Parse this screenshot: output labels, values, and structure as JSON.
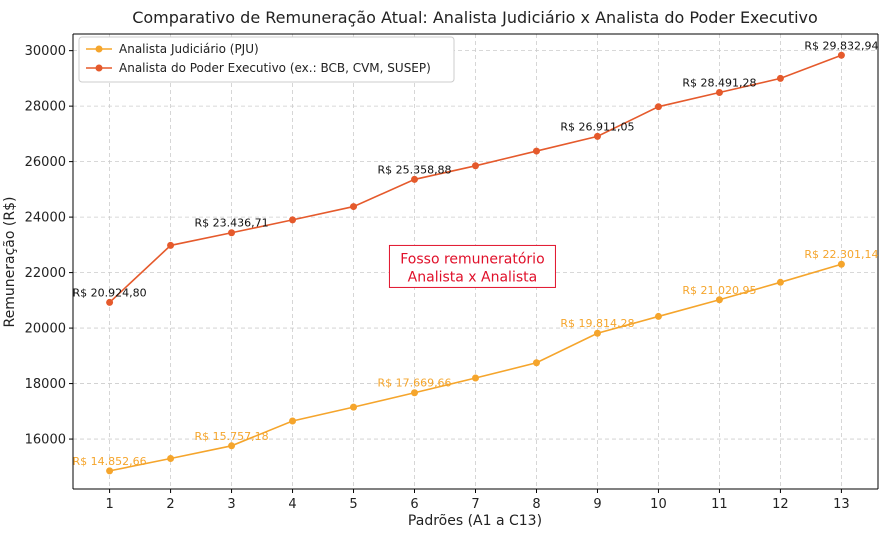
{
  "chart_data": {
    "type": "line",
    "title": "Comparativo de Remuneração Atual: Analista Judiciário x Analista do Poder Executivo",
    "xlabel": "Padrões (A1 a C13)",
    "ylabel": "Remuneração (R$)",
    "x": [
      1,
      2,
      3,
      4,
      5,
      6,
      7,
      8,
      9,
      10,
      11,
      12,
      13
    ],
    "x_ticks": [
      "1",
      "2",
      "3",
      "4",
      "5",
      "6",
      "7",
      "8",
      "9",
      "10",
      "11",
      "12",
      "13"
    ],
    "xlim": [
      0.4,
      13.6
    ],
    "ylim": [
      14200,
      30600
    ],
    "y_ticks": [
      16000,
      18000,
      20000,
      22000,
      24000,
      26000,
      28000,
      30000
    ],
    "y_tick_labels": [
      "16000",
      "18000",
      "20000",
      "22000",
      "24000",
      "26000",
      "28000",
      "30000"
    ],
    "grid": true,
    "legend_position": "top-left",
    "series": [
      {
        "name": "Analista Judiciário (PJU)",
        "color": "#f5a52c",
        "values": [
          14852.66,
          15300,
          15757.18,
          16650,
          17150,
          17669.66,
          18200,
          18750,
          19814.28,
          20420,
          21020.95,
          21650,
          22301.14
        ],
        "labels": [
          {
            "x": 1,
            "text": "R$ 14.852,66"
          },
          {
            "x": 3,
            "text": "R$ 15.757,18"
          },
          {
            "x": 6,
            "text": "R$ 17.669,66"
          },
          {
            "x": 9,
            "text": "R$ 19.814,28"
          },
          {
            "x": 11,
            "text": "R$ 21.020,95"
          },
          {
            "x": 13,
            "text": "R$ 22.301,14"
          }
        ]
      },
      {
        "name": "Analista do Poder Executivo (ex.: BCB, CVM, SUSEP)",
        "color": "#e55a2c",
        "values": [
          20924.8,
          22980,
          23436.71,
          23900,
          24380,
          25358.88,
          25850,
          26380,
          26911.05,
          27980,
          28491.28,
          29000,
          29832.94
        ],
        "labels": [
          {
            "x": 1,
            "text": "R$ 20.924,80"
          },
          {
            "x": 3,
            "text": "R$ 23.436,71"
          },
          {
            "x": 6,
            "text": "R$ 25.358,88"
          },
          {
            "x": 9,
            "text": "R$ 26.911,05"
          },
          {
            "x": 11,
            "text": "R$ 28.491,28"
          },
          {
            "x": 13,
            "text": "R$ 29.832,94"
          }
        ]
      }
    ],
    "annotation": {
      "lines": [
        "Fosso remuneratório",
        "Analista x Analista"
      ],
      "x": 6.95,
      "y": 22150,
      "color": "#e0102a"
    }
  }
}
